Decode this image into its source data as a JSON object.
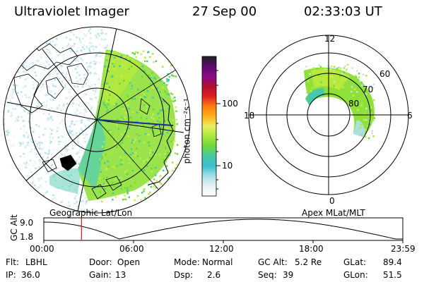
{
  "header": {
    "title": "Ultraviolet Imager",
    "date": "27 Sep 00",
    "time": "02:33:03 UT"
  },
  "colorbar": {
    "unit_label": "photon cm⁻²s⁻¹",
    "ticks": [
      "100",
      "10"
    ],
    "colors": [
      "#202020",
      "#5a0a6e",
      "#8a0a8a",
      "#b01030",
      "#e02020",
      "#ff7a10",
      "#ffb01c",
      "#e8f060",
      "#a8e83a",
      "#6cd838",
      "#48c8a8",
      "#39c0d0",
      "#a8dfe8",
      "#e8f2f4",
      "#ffffff"
    ]
  },
  "left_map": {
    "caption": "Geographic Lat/Lon"
  },
  "right_map": {
    "caption": "Apex MLat/MLT",
    "mlt_labels": {
      "top": "12",
      "left": "18",
      "right": "6",
      "bottom": "0"
    },
    "lat_labels": [
      "60",
      "70",
      "80"
    ]
  },
  "timeline": {
    "axis_label": "GC Alt",
    "y_ticks": [
      "9.0",
      "1.8"
    ],
    "x_ticks": [
      "00:00",
      "06:00",
      "12:00",
      "18:00",
      "23:59"
    ],
    "current_time_fraction": 0.105
  },
  "info": {
    "row1": [
      {
        "k": "Flt:",
        "v": "LBHL"
      },
      {
        "k": "Door:",
        "v": "Open"
      },
      {
        "k": "Mode:",
        "v": "Normal"
      },
      {
        "k": "GC Alt:",
        "v": "5.2 Re"
      },
      {
        "k": "GLat:",
        "v": "89.4"
      }
    ],
    "row2": [
      {
        "k": "IP:",
        "v": "36.0"
      },
      {
        "k": "Gain:",
        "v": "13"
      },
      {
        "k": "Dsp:",
        "v": "2.6"
      },
      {
        "k": "Seq:",
        "v": "39"
      },
      {
        "k": "GLon:",
        "v": "51.5"
      }
    ]
  }
}
